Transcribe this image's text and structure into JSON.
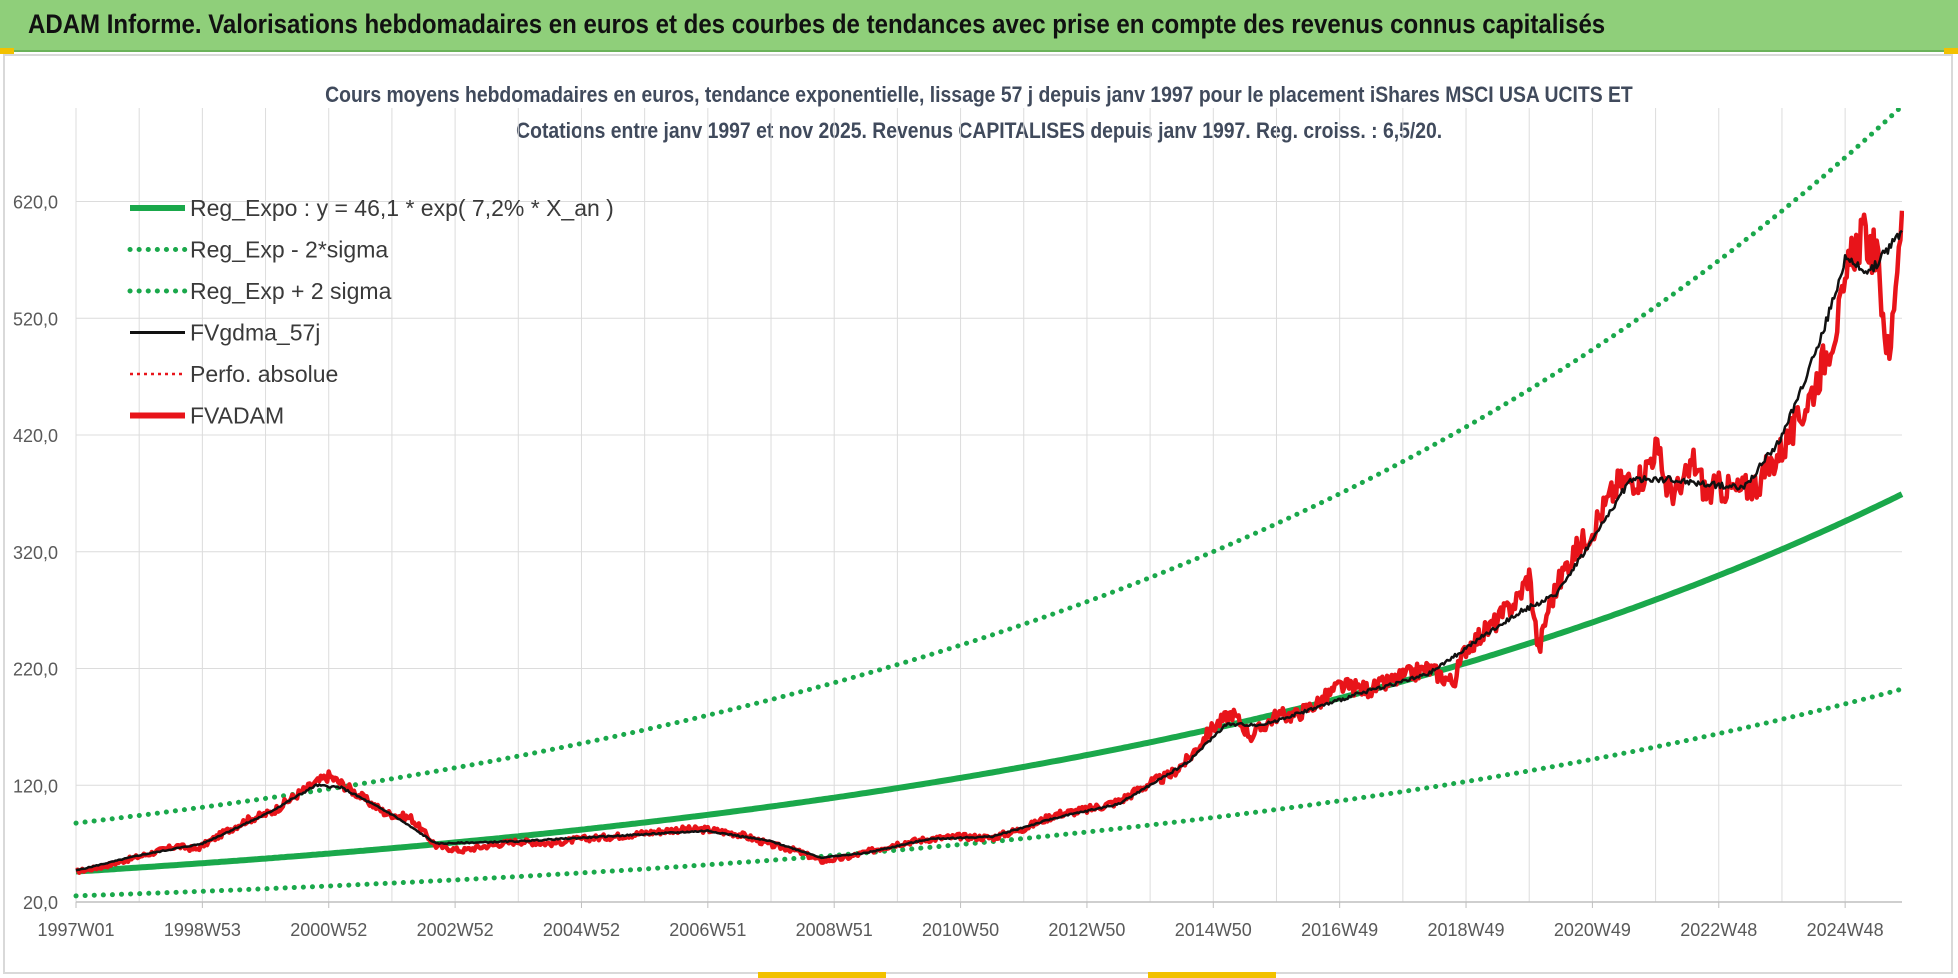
{
  "banner": {
    "title": "ADAM Informe. Valorisations hebdomadaires en euros et des courbes de tendances avec prise en compte des revenus connus capitalisés"
  },
  "colors": {
    "banner_bg": "#8fcf7a",
    "reg_green": "#1aa84b",
    "black": "#111111",
    "red": "#e8141a",
    "grid": "#dcdcdc",
    "axis_text": "#595959"
  },
  "chart_data": {
    "type": "line",
    "title_line1": "Cours moyens hebdomadaires en euros, tendance exponentielle, lissage 57 j depuis janv 1997 pour le placement iShares MSCI USA UCITS ET",
    "title_line2": "Cotations entre janv 1997 et nov 2025. Revenus CAPITALISES depuis janv 1997. Reg. croiss. : 6,5/20.",
    "xlabel": "",
    "ylabel": "",
    "x_range_years": [
      1997.0,
      2025.9
    ],
    "ylim": [
      20,
      680
    ],
    "y_ticks": [
      "20,0",
      "120,0",
      "220,0",
      "320,0",
      "420,0",
      "520,0",
      "620,0"
    ],
    "y_tick_values": [
      20,
      120,
      220,
      320,
      420,
      520,
      620
    ],
    "x_ticks": [
      "1997W01",
      "1998W53",
      "2000W52",
      "2002W52",
      "2004W52",
      "2006W51",
      "2008W51",
      "2010W50",
      "2012W50",
      "2014W50",
      "2016W49",
      "2018W49",
      "2020W49",
      "2022W48",
      "2024W48"
    ],
    "x_tick_years": [
      1997.0,
      1999.0,
      2001.0,
      2003.0,
      2005.0,
      2007.0,
      2009.0,
      2011.0,
      2013.0,
      2015.0,
      2017.0,
      2019.0,
      2021.0,
      2023.0,
      2025.0
    ],
    "grid": true,
    "legend_position": "top-left",
    "legend": [
      {
        "label": "Reg_Expo : y = 46,1 * exp( 7,2% *  X_an )",
        "style": "solid-thick",
        "color": "#1aa84b"
      },
      {
        "label": "Reg_Exp - 2*sigma",
        "style": "dotted",
        "color": "#1aa84b"
      },
      {
        "label": "Reg_Exp + 2 sigma",
        "style": "dotted",
        "color": "#1aa84b"
      },
      {
        "label": "FVgdma_57j",
        "style": "solid",
        "color": "#111111"
      },
      {
        "label": "Perfo. absolue",
        "style": "dotted-thin",
        "color": "#e8141a"
      },
      {
        "label": "FVADAM",
        "style": "solid-thick",
        "color": "#e8141a"
      }
    ],
    "regression": {
      "a": 46.1,
      "rate": 0.072,
      "start_year": 1997.0
    },
    "band_minus_2sigma_factor": 0.548,
    "band_plus_2sigma_factor": 1.9,
    "fvadam": {
      "name": "FVADAM",
      "years": [
        1997.0,
        1997.4,
        1997.8,
        1998.2,
        1998.6,
        1998.9,
        1999.3,
        1999.7,
        2000.1,
        2000.5,
        2000.8,
        2001.0,
        2001.3,
        2001.6,
        2001.9,
        2002.3,
        2002.7,
        2003.1,
        2003.5,
        2004.0,
        2004.5,
        2005.0,
        2005.5,
        2006.0,
        2006.5,
        2007.0,
        2007.5,
        2008.0,
        2008.4,
        2008.8,
        2009.2,
        2009.6,
        2010.0,
        2010.5,
        2011.0,
        2011.5,
        2012.0,
        2012.5,
        2013.0,
        2013.5,
        2014.0,
        2014.3,
        2014.6,
        2015.0,
        2015.3,
        2015.6,
        2016.0,
        2016.3,
        2016.7,
        2017.0,
        2017.5,
        2018.0,
        2018.4,
        2018.8,
        2019.0,
        2019.4,
        2019.8,
        2020.0,
        2020.15,
        2020.3,
        2020.6,
        2021.0,
        2021.4,
        2021.8,
        2022.0,
        2022.2,
        2022.4,
        2022.6,
        2022.8,
        2023.0,
        2023.3,
        2023.6,
        2023.9,
        2024.2,
        2024.5,
        2024.8,
        2025.0,
        2025.1,
        2025.3,
        2025.5,
        2025.7,
        2025.8,
        2025.9
      ],
      "values": [
        46,
        50,
        56,
        62,
        68,
        65,
        78,
        90,
        97,
        112,
        122,
        128,
        118,
        107,
        96,
        92,
        68,
        64,
        68,
        72,
        70,
        74,
        76,
        79,
        82,
        82,
        78,
        69,
        64,
        55,
        58,
        64,
        70,
        74,
        76,
        75,
        83,
        95,
        99,
        106,
        122,
        128,
        142,
        170,
        182,
        162,
        180,
        180,
        192,
        205,
        202,
        213,
        220,
        208,
        238,
        256,
        278,
        300,
        234,
        272,
        310,
        340,
        378,
        385,
        410,
        373,
        372,
        398,
        370,
        375,
        372,
        378,
        400,
        425,
        460,
        505,
        540,
        578,
        590,
        572,
        480,
        555,
        612
      ]
    },
    "fvgdma_57j": {
      "name": "FVgdma_57j",
      "years": [
        1997.0,
        1998.0,
        1999.0,
        2000.0,
        2000.8,
        2001.2,
        2002.0,
        2002.7,
        2004.0,
        2006.0,
        2007.0,
        2008.0,
        2008.8,
        2009.5,
        2010.5,
        2011.5,
        2012.5,
        2013.5,
        2014.0,
        2014.6,
        2015.2,
        2015.8,
        2016.6,
        2017.4,
        2018.4,
        2019.2,
        2019.9,
        2020.4,
        2021.0,
        2021.6,
        2022.2,
        2022.8,
        2023.4,
        2024.0,
        2024.6,
        2025.0,
        2025.4,
        2025.9
      ],
      "values": [
        47,
        60,
        70,
        95,
        120,
        118,
        95,
        70,
        72,
        78,
        81,
        72,
        58,
        62,
        74,
        76,
        92,
        104,
        120,
        140,
        172,
        172,
        186,
        200,
        215,
        245,
        270,
        282,
        330,
        382,
        382,
        378,
        375,
        418,
        500,
        570,
        560,
        595
      ]
    }
  }
}
